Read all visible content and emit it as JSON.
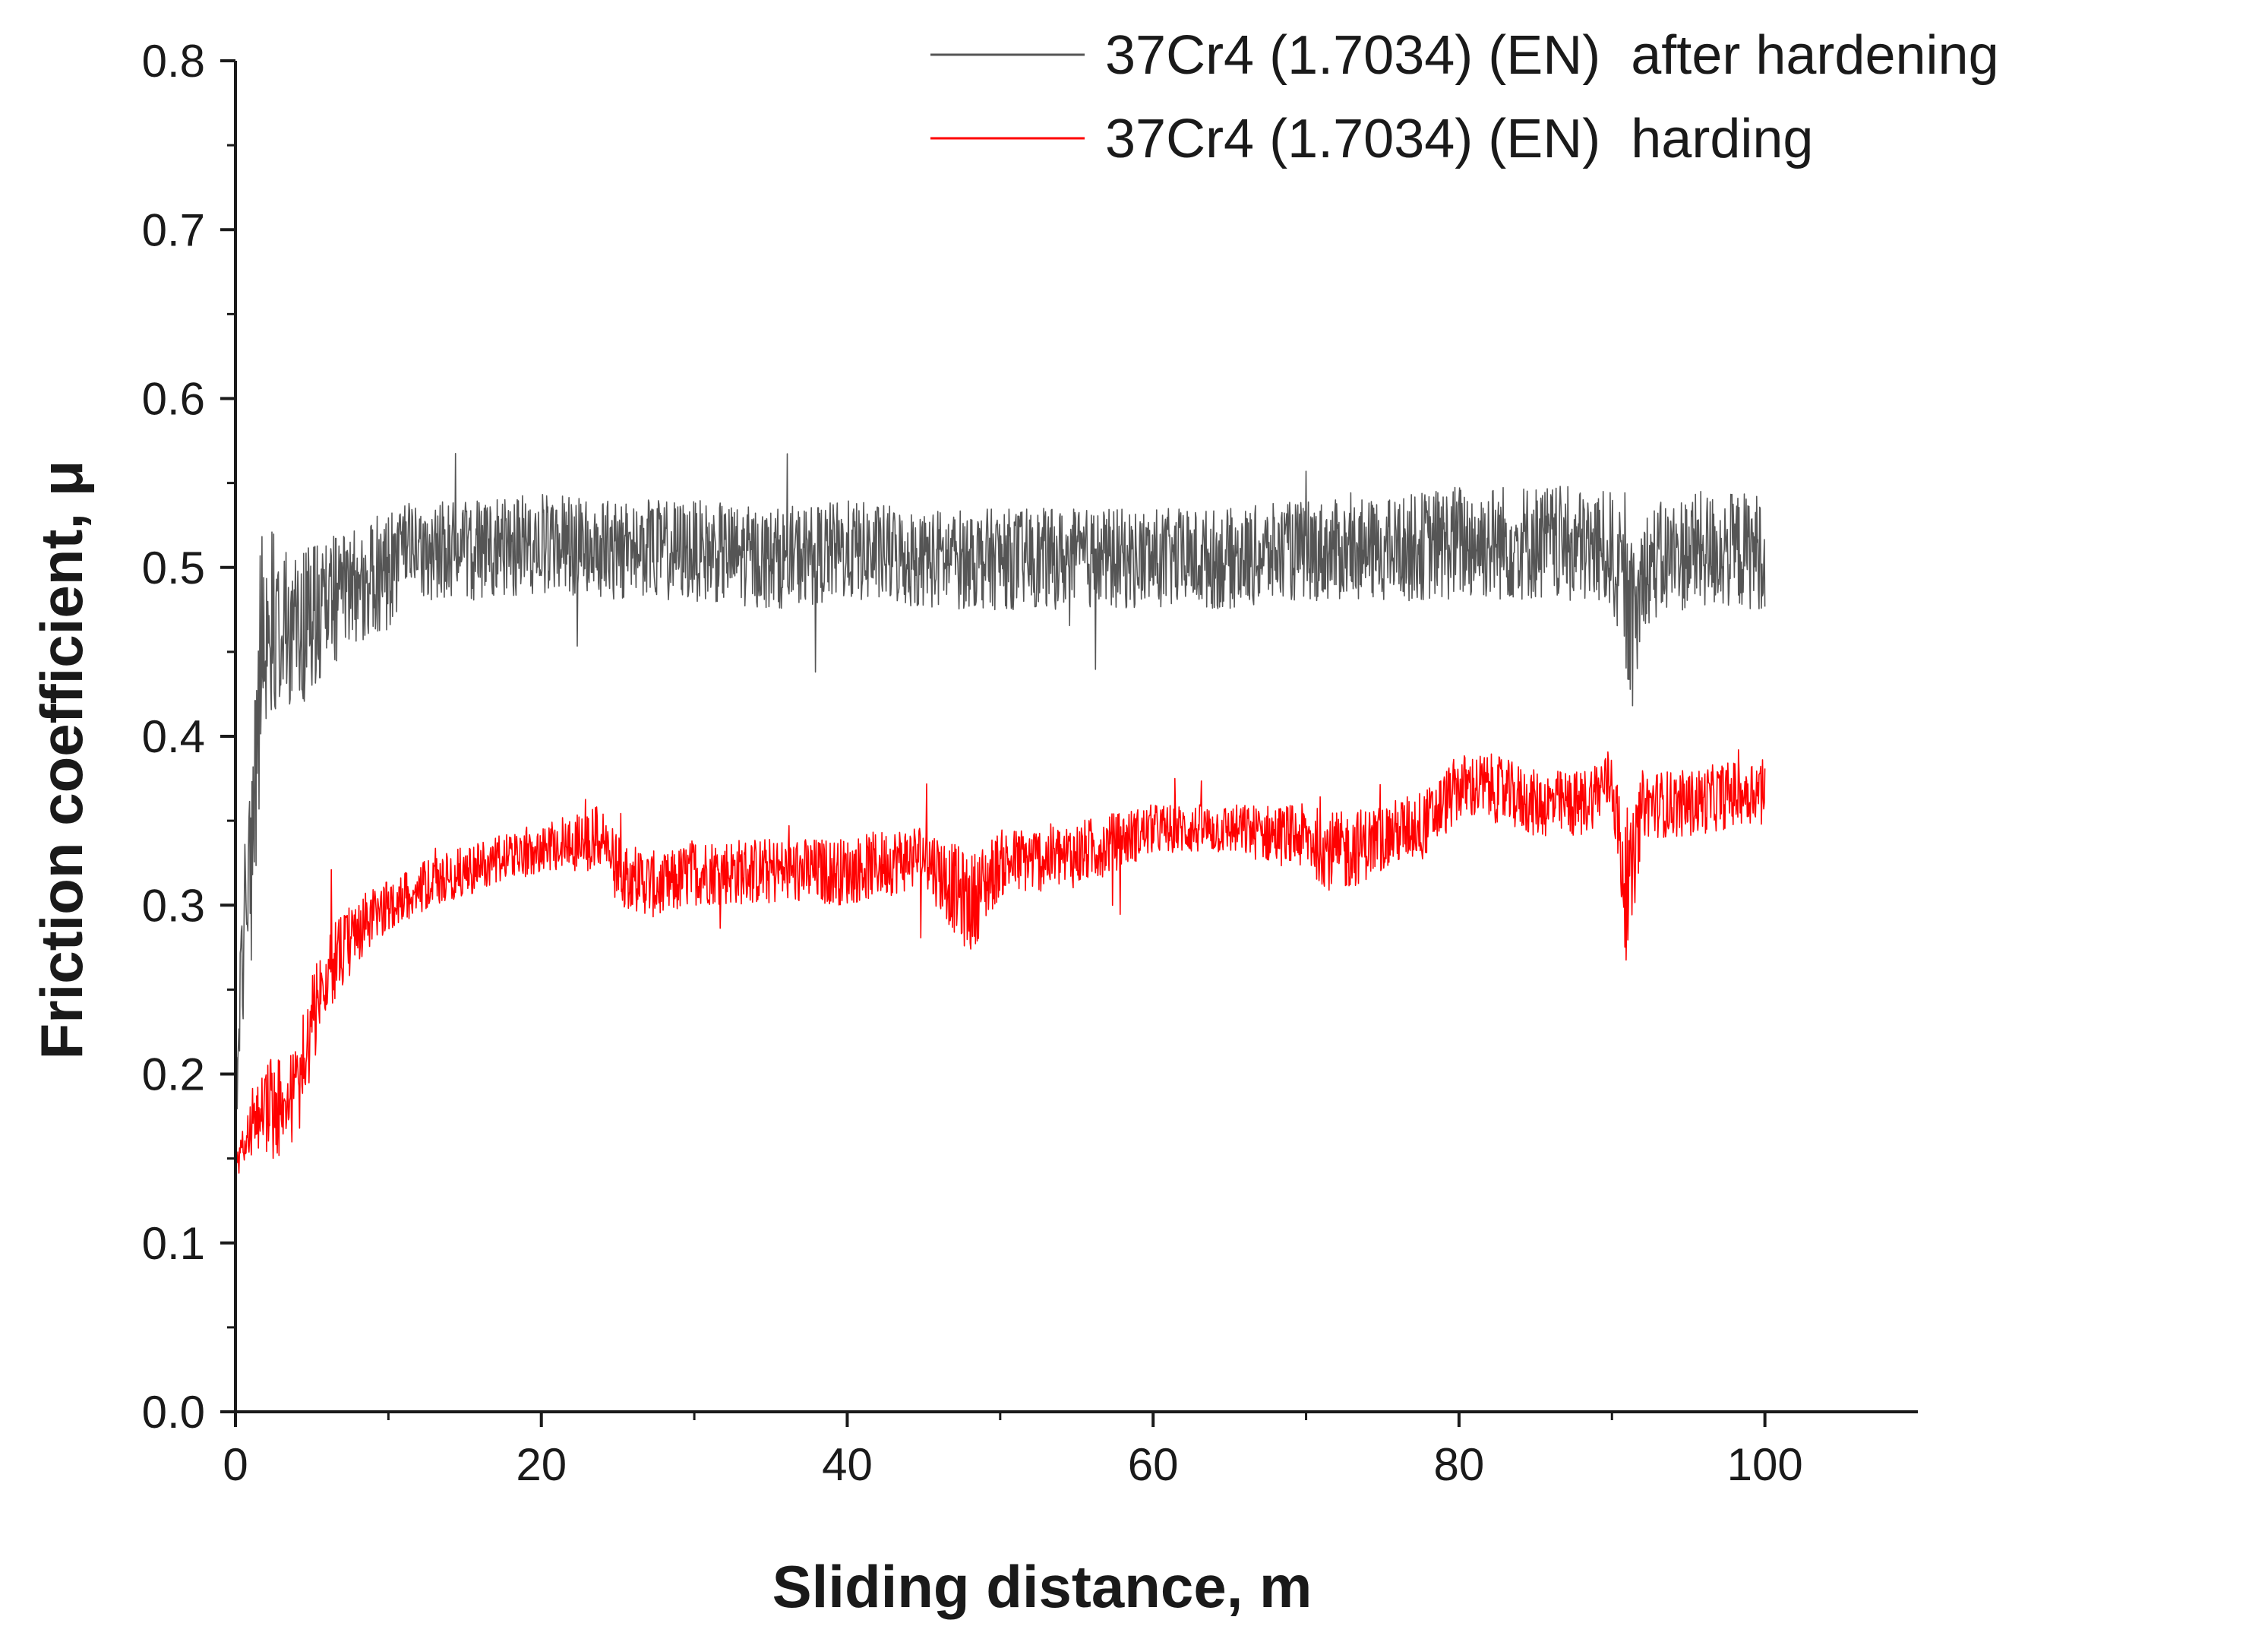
{
  "chart_data": {
    "type": "line",
    "title": "",
    "xlabel": "Sliding distance, m",
    "ylabel": "Friction coefficient, μ",
    "xlim": [
      0,
      110
    ],
    "ylim": [
      0,
      0.8
    ],
    "x_ticks": [
      0,
      20,
      40,
      60,
      80,
      100
    ],
    "x_tick_labels": [
      "0",
      "20",
      "40",
      "60",
      "80",
      "100"
    ],
    "y_ticks": [
      0,
      0.1,
      0.2,
      0.3,
      0.4,
      0.5,
      0.6,
      0.7,
      0.8
    ],
    "y_tick_labels": [
      "0.0",
      "0.1",
      "0.2",
      "0.3",
      "0.4",
      "0.5",
      "0.6",
      "0.7",
      "0.8"
    ],
    "grid": false,
    "legend_position": "top-right",
    "series": [
      {
        "name": "37Cr4 (1.7034) (EN)  after hardening",
        "color": "#555555",
        "x": [
          0,
          0.5,
          1,
          1.5,
          2,
          3,
          4,
          5,
          6,
          8,
          10,
          12,
          15,
          20,
          25,
          30,
          35,
          40,
          45,
          50,
          55,
          60,
          65,
          70,
          75,
          80,
          85,
          90,
          91.5,
          92,
          95,
          100
        ],
        "mean": [
          0.18,
          0.28,
          0.33,
          0.42,
          0.47,
          0.47,
          0.46,
          0.47,
          0.48,
          0.49,
          0.5,
          0.51,
          0.51,
          0.515,
          0.51,
          0.51,
          0.505,
          0.51,
          0.505,
          0.505,
          0.505,
          0.505,
          0.505,
          0.51,
          0.51,
          0.515,
          0.515,
          0.51,
          0.46,
          0.5,
          0.51,
          0.51
        ],
        "amp": [
          0.02,
          0.05,
          0.07,
          0.09,
          0.06,
          0.05,
          0.045,
          0.045,
          0.04,
          0.035,
          0.035,
          0.03,
          0.03,
          0.03,
          0.03,
          0.03,
          0.03,
          0.03,
          0.03,
          0.03,
          0.03,
          0.03,
          0.03,
          0.03,
          0.03,
          0.035,
          0.035,
          0.035,
          0.05,
          0.035,
          0.035,
          0.035
        ]
      },
      {
        "name": "37Cr4 (1.7034) (EN)  harding",
        "color": "#ff0000",
        "x": [
          0,
          1,
          2,
          3,
          4,
          5,
          6,
          8,
          10,
          12,
          15,
          20,
          24,
          25,
          28,
          30,
          35,
          40,
          45,
          48,
          50,
          55,
          60,
          65,
          70,
          72,
          75,
          78,
          80,
          82,
          85,
          88,
          90,
          91,
          92,
          95,
          100
        ],
        "mean": [
          0.14,
          0.17,
          0.18,
          0.18,
          0.19,
          0.23,
          0.26,
          0.285,
          0.3,
          0.31,
          0.32,
          0.335,
          0.34,
          0.32,
          0.31,
          0.32,
          0.32,
          0.32,
          0.33,
          0.3,
          0.325,
          0.33,
          0.345,
          0.345,
          0.34,
          0.33,
          0.34,
          0.35,
          0.37,
          0.37,
          0.36,
          0.36,
          0.375,
          0.3,
          0.36,
          0.36,
          0.37
        ],
        "amp": [
          0.01,
          0.02,
          0.03,
          0.03,
          0.03,
          0.03,
          0.025,
          0.02,
          0.015,
          0.015,
          0.015,
          0.015,
          0.02,
          0.02,
          0.02,
          0.02,
          0.02,
          0.02,
          0.02,
          0.03,
          0.02,
          0.02,
          0.015,
          0.015,
          0.02,
          0.025,
          0.02,
          0.02,
          0.02,
          0.02,
          0.02,
          0.02,
          0.02,
          0.04,
          0.02,
          0.02,
          0.02
        ]
      }
    ],
    "annotations": []
  }
}
